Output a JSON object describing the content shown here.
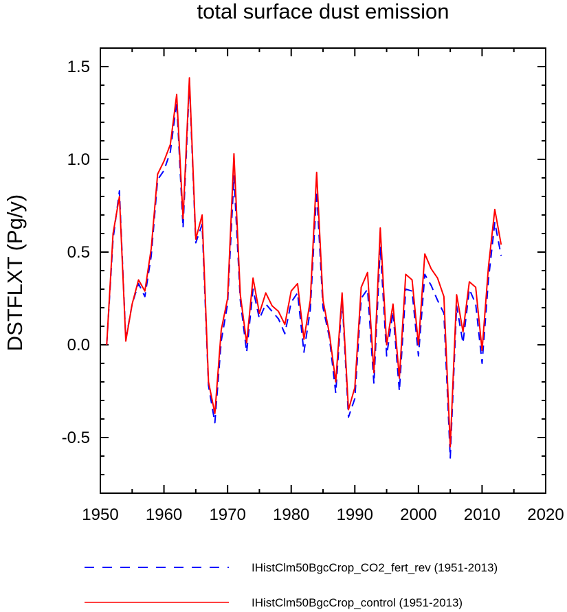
{
  "chart_data": {
    "type": "line",
    "title": "total surface dust emission",
    "xlabel": "",
    "ylabel": "DSTFLXT  (Pg/y)",
    "xlim": [
      1950,
      2020
    ],
    "ylim": [
      -0.8,
      1.6
    ],
    "xticks": [
      1950,
      1960,
      1970,
      1980,
      1990,
      2000,
      2010,
      2020
    ],
    "xtick_labels": [
      "1950",
      "1960",
      "1970",
      "1980",
      "1990",
      "2000",
      "2010",
      "2020"
    ],
    "yticks": [
      -0.5,
      0.0,
      0.5,
      1.0,
      1.5
    ],
    "ytick_labels": [
      "-0.5",
      "0.0",
      "0.5",
      "1.0",
      "1.5"
    ],
    "grid": false,
    "legend_position": "bottom",
    "x": [
      1951,
      1952,
      1953,
      1954,
      1955,
      1956,
      1957,
      1958,
      1959,
      1960,
      1961,
      1962,
      1963,
      1964,
      1965,
      1966,
      1967,
      1968,
      1969,
      1970,
      1971,
      1972,
      1973,
      1974,
      1975,
      1976,
      1977,
      1978,
      1979,
      1980,
      1981,
      1982,
      1983,
      1984,
      1985,
      1986,
      1987,
      1988,
      1989,
      1990,
      1991,
      1992,
      1993,
      1994,
      1995,
      1996,
      1997,
      1998,
      1999,
      2000,
      2001,
      2002,
      2003,
      2004,
      2005,
      2006,
      2007,
      2008,
      2009,
      2010,
      2011,
      2012,
      2013
    ],
    "series": [
      {
        "name": "IHistClm50BgcCrop_CO2_fert_rev (1951-2013)",
        "color": "#0000ff",
        "dash": "dashed",
        "values": [
          0.0,
          0.57,
          0.83,
          0.03,
          0.22,
          0.33,
          0.26,
          0.48,
          0.89,
          0.94,
          1.04,
          1.31,
          0.63,
          1.41,
          0.55,
          0.65,
          -0.22,
          -0.42,
          0.02,
          0.22,
          0.91,
          0.24,
          -0.04,
          0.3,
          0.14,
          0.22,
          0.18,
          0.14,
          0.06,
          0.23,
          0.28,
          -0.04,
          0.19,
          0.83,
          0.2,
          0.04,
          -0.26,
          0.25,
          -0.39,
          -0.29,
          0.25,
          0.3,
          -0.21,
          0.53,
          -0.06,
          0.18,
          -0.25,
          0.3,
          0.29,
          -0.06,
          0.38,
          0.32,
          0.24,
          0.17,
          -0.61,
          0.21,
          0.01,
          0.3,
          0.22,
          -0.1,
          0.35,
          0.66,
          0.48
        ]
      },
      {
        "name": "IHistClm50BgcCrop_control (1951-2013)",
        "color": "#ff0000",
        "dash": "solid",
        "values": [
          0.0,
          0.6,
          0.8,
          0.02,
          0.22,
          0.35,
          0.29,
          0.52,
          0.92,
          0.99,
          1.08,
          1.35,
          0.68,
          1.44,
          0.57,
          0.7,
          -0.2,
          -0.37,
          0.08,
          0.25,
          1.03,
          0.27,
          0.01,
          0.36,
          0.17,
          0.28,
          0.21,
          0.18,
          0.11,
          0.29,
          0.33,
          0.03,
          0.24,
          0.93,
          0.24,
          0.06,
          -0.2,
          0.28,
          -0.35,
          -0.23,
          0.31,
          0.39,
          -0.15,
          0.63,
          0.0,
          0.22,
          -0.18,
          0.38,
          0.35,
          0.0,
          0.49,
          0.41,
          0.36,
          0.26,
          -0.55,
          0.27,
          0.07,
          0.34,
          0.31,
          -0.03,
          0.42,
          0.73,
          0.54
        ]
      }
    ]
  }
}
